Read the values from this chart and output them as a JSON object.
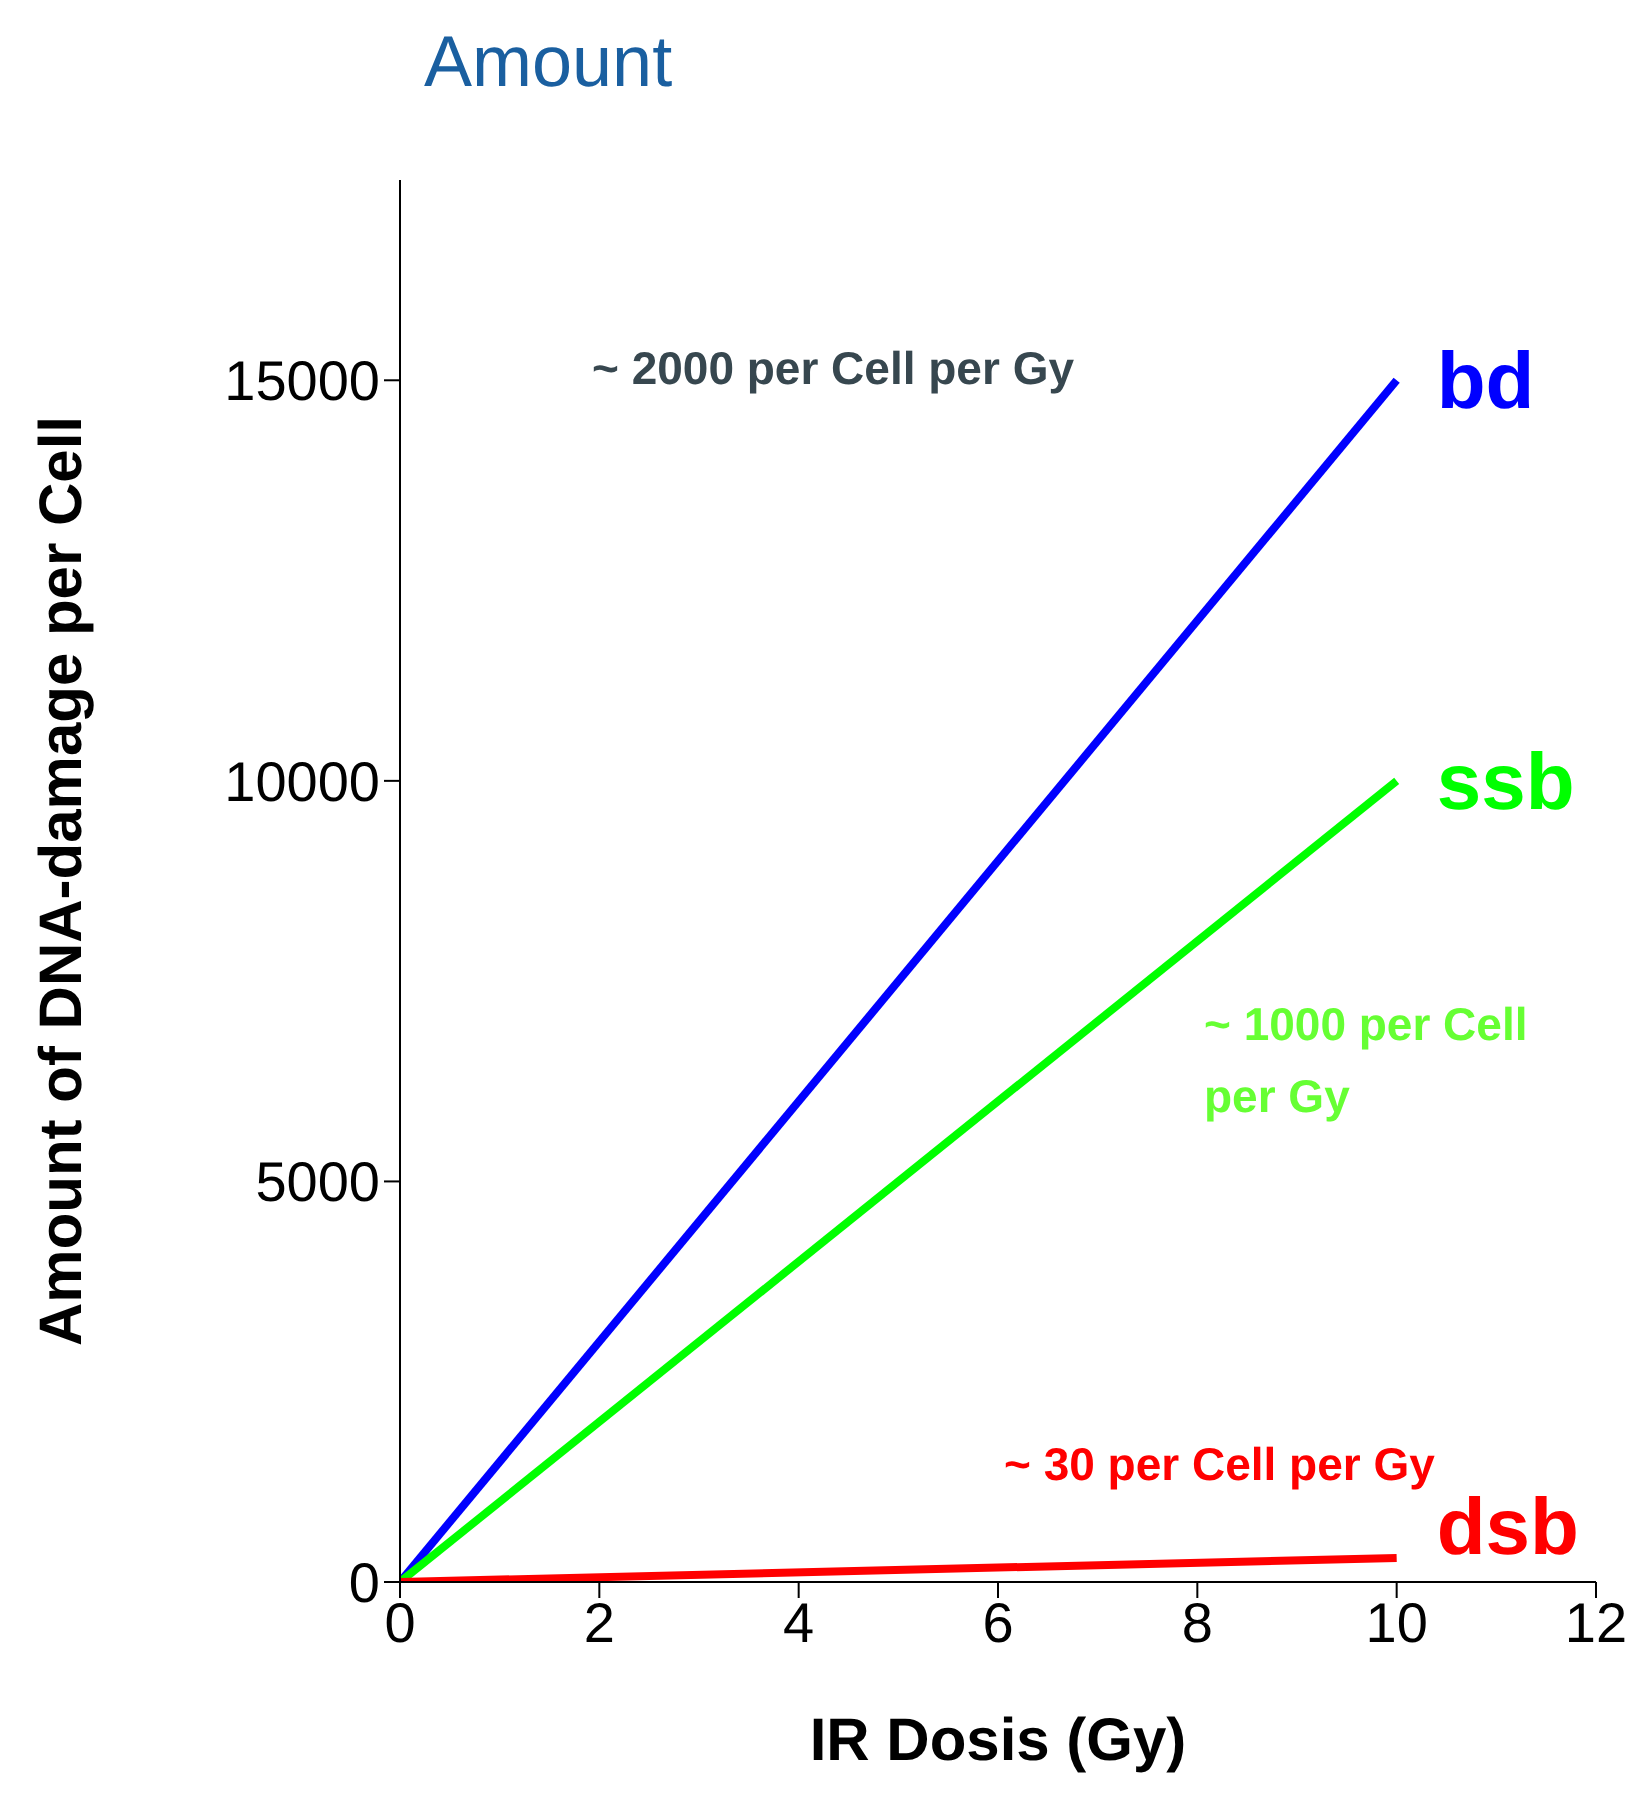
{
  "chart_data": {
    "type": "line",
    "title": "Amount",
    "xlabel": "IR Dosis (Gy)",
    "ylabel": "Amount of DNA-damage per Cell",
    "x": [
      0,
      10
    ],
    "series": [
      {
        "name": "bd",
        "color": "#0000ff",
        "values": [
          0,
          15000
        ]
      },
      {
        "name": "ssb",
        "color": "#00ff00",
        "values": [
          0,
          10000
        ]
      },
      {
        "name": "dsb",
        "color": "#ff0000",
        "values": [
          0,
          300
        ]
      }
    ],
    "xlim": [
      0,
      12
    ],
    "xticks": [
      0,
      2,
      4,
      6,
      8,
      10,
      12
    ],
    "ylim": [
      0,
      17500
    ],
    "yticks": [
      0,
      5000,
      10000,
      15000
    ],
    "annotations": [
      "~ 2000 per Cell per Gy",
      "~ 1000 per Cell per Gy",
      "~ 30 per Cell per Gy"
    ],
    "grid": false,
    "legend": false,
    "marker": "none",
    "line_style": "solid"
  }
}
